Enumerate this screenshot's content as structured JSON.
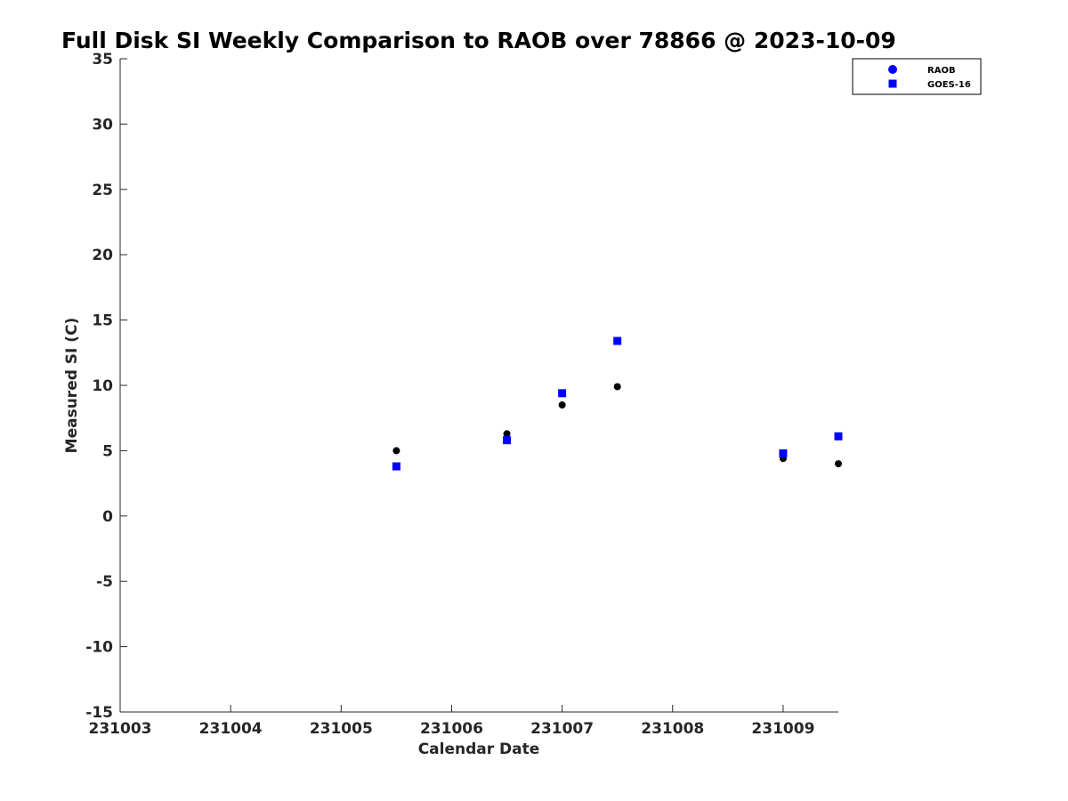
{
  "chart_data": {
    "type": "scatter",
    "title": "Full Disk SI Weekly Comparison to RAOB over 78866 @ 2023-10-09",
    "xlabel": "Calendar Date",
    "ylabel": "Measured SI (C)",
    "xlim": [
      231003,
      231009.5
    ],
    "ylim": [
      -15,
      35
    ],
    "x_ticks": [
      231003,
      231004,
      231005,
      231006,
      231007,
      231008,
      231009
    ],
    "x_tick_labels": [
      "231003",
      "231004",
      "231005",
      "231006",
      "231007",
      "231008",
      "231009"
    ],
    "y_ticks": [
      -15,
      -10,
      -5,
      0,
      5,
      10,
      15,
      20,
      25,
      30,
      35
    ],
    "y_tick_labels": [
      "-15",
      "-10",
      "-5",
      "0",
      "5",
      "10",
      "15",
      "20",
      "25",
      "30",
      "35"
    ],
    "grid": false,
    "legend_position": "top-right",
    "series": [
      {
        "name": "RAOB",
        "marker": "circle",
        "legend_color": "#0000ff",
        "point_color": "#000000",
        "x": [
          231005.5,
          231006.5,
          231007.0,
          231007.5,
          231009.0,
          231009.5
        ],
        "y": [
          5.0,
          6.3,
          8.5,
          9.9,
          4.4,
          4.0
        ]
      },
      {
        "name": "GOES-16",
        "marker": "square",
        "legend_color": "#0000ff",
        "point_color": "#0000ff",
        "x": [
          231005.5,
          231006.5,
          231007.0,
          231007.5,
          231009.0,
          231009.5
        ],
        "y": [
          3.8,
          5.8,
          9.4,
          13.4,
          4.8,
          6.1
        ]
      }
    ]
  }
}
